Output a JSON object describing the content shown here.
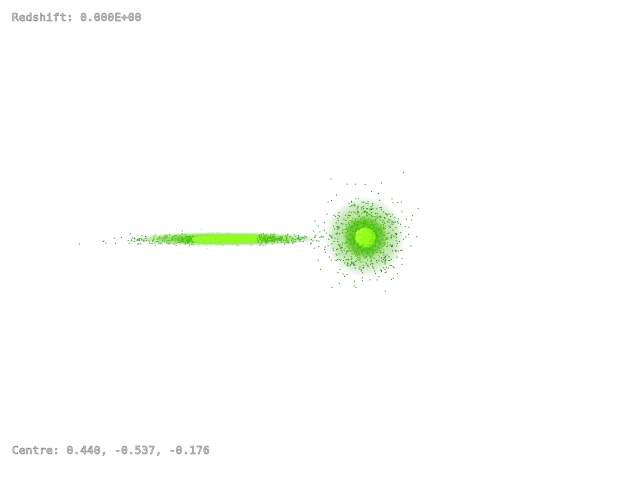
{
  "overlay": {
    "redshift_label": "Redshift: 0.000E+00",
    "centre_label": "Centre: 0.440, -0.537, -0.176"
  },
  "colors": {
    "background": "#ffffff",
    "particle_core": "#8cff1a",
    "particle_mid": "#3fbf00",
    "particle_edge": "#1f8a00",
    "label_outline": "#7a7a7a"
  },
  "scene": {
    "objects": [
      {
        "kind": "edge-on disk galaxy",
        "color_name": "green"
      },
      {
        "kind": "spheroidal galaxy",
        "color_name": "green"
      }
    ]
  }
}
